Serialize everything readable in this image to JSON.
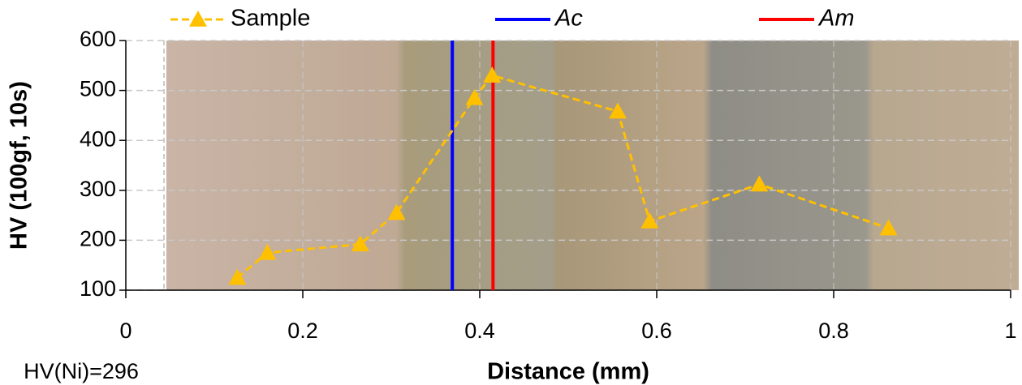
{
  "chart_data": {
    "type": "line",
    "xlabel": "Distance (mm)",
    "ylabel": "HV (100gf, 10s)",
    "annotation": "HV(Ni)=296",
    "xlim": [
      0,
      1
    ],
    "xticks": [
      0,
      0.2,
      0.4,
      0.6,
      0.8,
      1
    ],
    "ylim": [
      100,
      600
    ],
    "yticks": [
      100,
      200,
      300,
      400,
      500,
      600
    ],
    "grid": true,
    "series": [
      {
        "name": "Sample",
        "color": "#ffc000",
        "x": [
          0.126,
          0.16,
          0.265,
          0.306,
          0.394,
          0.414,
          0.556,
          0.592,
          0.716,
          0.862
        ],
        "values": [
          125,
          175,
          192,
          255,
          485,
          530,
          458,
          238,
          312,
          224
        ]
      }
    ],
    "vlines": [
      {
        "name": "Ac",
        "color": "#0000ff",
        "x": 0.369
      },
      {
        "name": "Am",
        "color": "#ff0000",
        "x": 0.415
      }
    ]
  }
}
